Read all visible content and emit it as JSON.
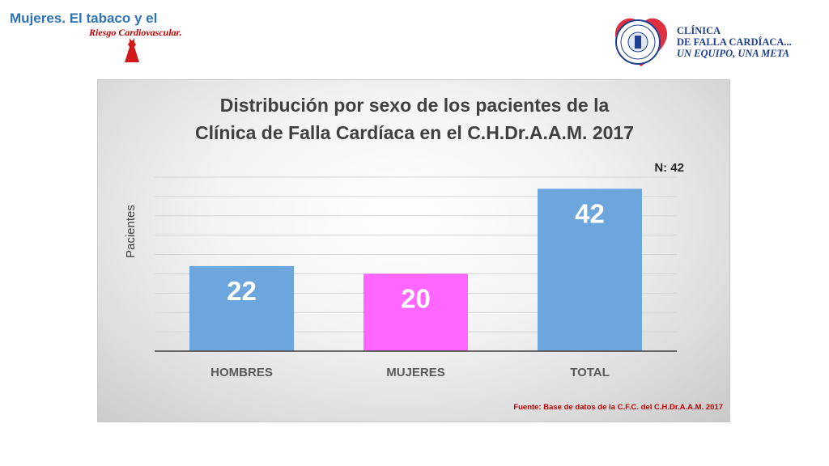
{
  "header": {
    "title": "Mujeres. El tabaco y el",
    "subtitle": "Riesgo Cardiovascular."
  },
  "logo": {
    "line1": "CLÍNICA",
    "line2": "DE FALLA CARDÍACA...",
    "line3": "UN EQUIPO, UNA META",
    "colors": {
      "heart": "#e03040",
      "navy": "#1f3f8f"
    }
  },
  "chart_data": {
    "type": "bar",
    "title": [
      "Distribución por sexo de los pacientes de la",
      "Clínica de Falla Cardíaca en el C.H.Dr.A.A.M. 2017"
    ],
    "ylabel": "Pacientes",
    "xlabel": "",
    "annotation": "N: 42",
    "categories": [
      "HOMBRES",
      "MUJERES",
      "TOTAL"
    ],
    "values": [
      22,
      20,
      42
    ],
    "data_labels": [
      "22",
      "20",
      "42"
    ],
    "colors": [
      "#6ca6dc",
      "#ff66ff",
      "#6ca6dc"
    ],
    "ylim": [
      0,
      45
    ],
    "grid": true,
    "source": "Fuente: Base de datos de la C.F.C. del C.H.Dr.A.A.M. 2017"
  }
}
